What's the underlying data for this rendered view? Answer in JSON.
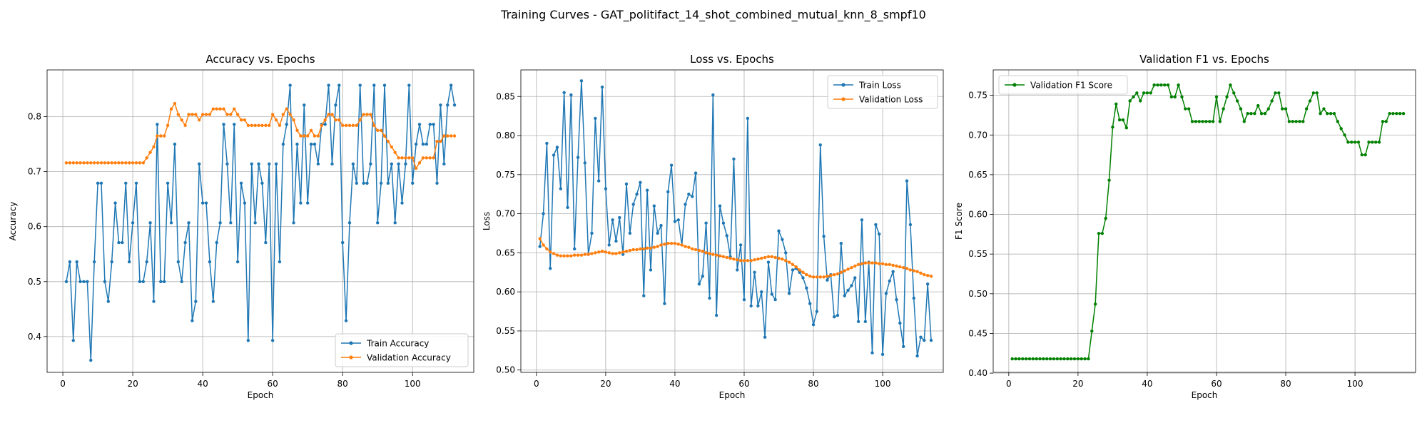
{
  "figure": {
    "suptitle": "Training Curves - GAT_politifact_14_shot_combined_mutual_knn_8_smpf10"
  },
  "colors": {
    "train": "#1f77b4",
    "val": "#ff7f0e",
    "f1": "#008000",
    "grid": "#b0b0b0"
  },
  "chart_data": [
    {
      "type": "line",
      "title": "Accuracy vs. Epochs",
      "xlabel": "Epoch",
      "ylabel": "Accuracy",
      "xlim": [
        -4.5,
        117.5
      ],
      "ylim": [
        0.335,
        0.885
      ],
      "xticks": [
        0,
        20,
        40,
        60,
        80,
        100
      ],
      "yticks": [
        0.4,
        0.5,
        0.6,
        0.7,
        0.8
      ],
      "ytick_labels": [
        "0.4",
        "0.5",
        "0.6",
        "0.7",
        "0.8"
      ],
      "grid": true,
      "legend_position": "lower-right",
      "series": [
        {
          "name": "Train Accuracy",
          "color": "#1f77b4",
          "x_start": 1,
          "values": [
            0.5,
            0.536,
            0.393,
            0.536,
            0.5,
            0.5,
            0.5,
            0.357,
            0.536,
            0.679,
            0.679,
            0.5,
            0.464,
            0.536,
            0.643,
            0.571,
            0.571,
            0.679,
            0.536,
            0.607,
            0.679,
            0.5,
            0.5,
            0.536,
            0.607,
            0.464,
            0.786,
            0.5,
            0.5,
            0.679,
            0.607,
            0.75,
            0.536,
            0.5,
            0.571,
            0.607,
            0.429,
            0.464,
            0.714,
            0.643,
            0.643,
            0.536,
            0.464,
            0.571,
            0.607,
            0.786,
            0.714,
            0.607,
            0.786,
            0.536,
            0.679,
            0.643,
            0.393,
            0.714,
            0.607,
            0.714,
            0.679,
            0.571,
            0.714,
            0.393,
            0.714,
            0.536,
            0.75,
            0.786,
            0.857,
            0.607,
            0.75,
            0.643,
            0.821,
            0.643,
            0.75,
            0.75,
            0.714,
            0.786,
            0.786,
            0.857,
            0.714,
            0.821,
            0.857,
            0.571,
            0.429,
            0.607,
            0.714,
            0.679,
            0.857,
            0.679,
            0.679,
            0.714,
            0.857,
            0.607,
            0.679,
            0.857,
            0.679,
            0.714,
            0.607,
            0.714,
            0.643,
            0.714,
            0.857,
            0.679,
            0.75,
            0.786,
            0.75,
            0.75,
            0.786,
            0.786,
            0.679,
            0.821,
            0.714,
            0.821,
            0.857,
            0.821
          ]
        },
        {
          "name": "Validation Accuracy",
          "color": "#ff7f0e",
          "x_start": 1,
          "values": [
            0.716,
            0.716,
            0.716,
            0.716,
            0.716,
            0.716,
            0.716,
            0.716,
            0.716,
            0.716,
            0.716,
            0.716,
            0.716,
            0.716,
            0.716,
            0.716,
            0.716,
            0.716,
            0.716,
            0.716,
            0.716,
            0.716,
            0.716,
            0.725,
            0.735,
            0.745,
            0.765,
            0.765,
            0.765,
            0.784,
            0.814,
            0.824,
            0.804,
            0.794,
            0.784,
            0.804,
            0.804,
            0.804,
            0.794,
            0.804,
            0.804,
            0.804,
            0.814,
            0.814,
            0.814,
            0.814,
            0.804,
            0.804,
            0.814,
            0.804,
            0.794,
            0.794,
            0.784,
            0.784,
            0.784,
            0.784,
            0.784,
            0.784,
            0.784,
            0.804,
            0.794,
            0.784,
            0.804,
            0.814,
            0.804,
            0.794,
            0.775,
            0.765,
            0.765,
            0.765,
            0.775,
            0.765,
            0.765,
            0.784,
            0.794,
            0.804,
            0.804,
            0.794,
            0.794,
            0.784,
            0.784,
            0.784,
            0.784,
            0.784,
            0.794,
            0.804,
            0.804,
            0.804,
            0.784,
            0.775,
            0.775,
            0.765,
            0.755,
            0.745,
            0.735,
            0.725,
            0.725,
            0.725,
            0.725,
            0.725,
            0.706,
            0.716,
            0.725,
            0.725,
            0.725,
            0.725,
            0.755,
            0.755,
            0.765,
            0.765,
            0.765,
            0.765
          ]
        }
      ]
    },
    {
      "type": "line",
      "title": "Loss vs. Epochs",
      "xlabel": "Epoch",
      "ylabel": "Loss",
      "xlim": [
        -4.5,
        117.5
      ],
      "ylim": [
        0.497,
        0.884
      ],
      "xticks": [
        0,
        20,
        40,
        60,
        80,
        100
      ],
      "yticks": [
        0.5,
        0.55,
        0.6,
        0.65,
        0.7,
        0.75,
        0.8,
        0.85
      ],
      "ytick_labels": [
        "0.50",
        "0.55",
        "0.60",
        "0.65",
        "0.70",
        "0.75",
        "0.80",
        "0.85"
      ],
      "grid": true,
      "legend_position": "upper-right",
      "series": [
        {
          "name": "Train Loss",
          "color": "#1f77b4",
          "x_start": 1,
          "values": [
            0.658,
            0.7,
            0.79,
            0.63,
            0.775,
            0.785,
            0.732,
            0.855,
            0.708,
            0.852,
            0.655,
            0.772,
            0.87,
            0.765,
            0.648,
            0.675,
            0.822,
            0.742,
            0.862,
            0.732,
            0.66,
            0.692,
            0.665,
            0.695,
            0.648,
            0.738,
            0.675,
            0.712,
            0.725,
            0.74,
            0.595,
            0.73,
            0.628,
            0.71,
            0.675,
            0.685,
            0.585,
            0.728,
            0.762,
            0.69,
            0.692,
            0.66,
            0.712,
            0.725,
            0.722,
            0.752,
            0.61,
            0.62,
            0.688,
            0.592,
            0.852,
            0.57,
            0.71,
            0.688,
            0.672,
            0.645,
            0.77,
            0.628,
            0.66,
            0.59,
            0.822,
            0.582,
            0.625,
            0.582,
            0.6,
            0.542,
            0.638,
            0.597,
            0.59,
            0.678,
            0.667,
            0.65,
            0.598,
            0.628,
            0.63,
            0.625,
            0.618,
            0.605,
            0.585,
            0.558,
            0.575,
            0.788,
            0.671,
            0.615,
            0.622,
            0.568,
            0.57,
            0.662,
            0.595,
            0.602,
            0.608,
            0.618,
            0.562,
            0.692,
            0.562,
            0.638,
            0.522,
            0.686,
            0.674,
            0.52,
            0.598,
            0.614,
            0.626,
            0.59,
            0.56,
            0.53,
            0.742,
            0.686,
            0.592,
            0.518,
            0.542,
            0.538,
            0.61,
            0.538
          ]
        },
        {
          "name": "Validation Loss",
          "color": "#ff7f0e",
          "x_start": 1,
          "values": [
            0.668,
            0.66,
            0.655,
            0.651,
            0.649,
            0.647,
            0.646,
            0.646,
            0.646,
            0.646,
            0.647,
            0.647,
            0.647,
            0.648,
            0.648,
            0.649,
            0.65,
            0.651,
            0.652,
            0.651,
            0.65,
            0.649,
            0.649,
            0.65,
            0.651,
            0.652,
            0.653,
            0.654,
            0.654,
            0.655,
            0.655,
            0.656,
            0.656,
            0.657,
            0.658,
            0.66,
            0.661,
            0.662,
            0.662,
            0.662,
            0.661,
            0.66,
            0.658,
            0.657,
            0.655,
            0.654,
            0.653,
            0.652,
            0.65,
            0.649,
            0.648,
            0.647,
            0.646,
            0.645,
            0.644,
            0.643,
            0.642,
            0.641,
            0.64,
            0.64,
            0.64,
            0.64,
            0.641,
            0.642,
            0.643,
            0.644,
            0.645,
            0.645,
            0.644,
            0.643,
            0.642,
            0.64,
            0.638,
            0.635,
            0.632,
            0.628,
            0.625,
            0.622,
            0.62,
            0.619,
            0.619,
            0.619,
            0.619,
            0.62,
            0.621,
            0.622,
            0.623,
            0.625,
            0.627,
            0.629,
            0.631,
            0.633,
            0.635,
            0.636,
            0.637,
            0.637,
            0.637,
            0.637,
            0.636,
            0.636,
            0.635,
            0.635,
            0.634,
            0.633,
            0.632,
            0.631,
            0.63,
            0.628,
            0.627,
            0.626,
            0.624,
            0.622,
            0.621,
            0.62
          ]
        }
      ]
    },
    {
      "type": "line",
      "title": "Validation F1 vs. Epochs",
      "xlabel": "Epoch",
      "ylabel": "F1 Score",
      "xlim": [
        -4.5,
        117.5
      ],
      "ylim": [
        0.401,
        0.782
      ],
      "xticks": [
        0,
        20,
        40,
        60,
        80,
        100
      ],
      "yticks": [
        0.4,
        0.45,
        0.5,
        0.55,
        0.6,
        0.65,
        0.7,
        0.75
      ],
      "ytick_labels": [
        "0.40",
        "0.45",
        "0.50",
        "0.55",
        "0.60",
        "0.65",
        "0.70",
        "0.75"
      ],
      "grid": true,
      "legend_position": "upper-left",
      "series": [
        {
          "name": "Validation F1 Score",
          "color": "#008000",
          "x_start": 1,
          "values": [
            0.418,
            0.418,
            0.418,
            0.418,
            0.418,
            0.418,
            0.418,
            0.418,
            0.418,
            0.418,
            0.418,
            0.418,
            0.418,
            0.418,
            0.418,
            0.418,
            0.418,
            0.418,
            0.418,
            0.418,
            0.418,
            0.418,
            0.418,
            0.453,
            0.487,
            0.576,
            0.576,
            0.595,
            0.643,
            0.71,
            0.739,
            0.719,
            0.719,
            0.709,
            0.743,
            0.748,
            0.753,
            0.743,
            0.753,
            0.753,
            0.753,
            0.763,
            0.763,
            0.763,
            0.763,
            0.763,
            0.748,
            0.748,
            0.763,
            0.748,
            0.733,
            0.733,
            0.717,
            0.717,
            0.717,
            0.717,
            0.717,
            0.717,
            0.717,
            0.748,
            0.717,
            0.733,
            0.748,
            0.763,
            0.753,
            0.743,
            0.733,
            0.717,
            0.727,
            0.727,
            0.727,
            0.737,
            0.727,
            0.727,
            0.733,
            0.743,
            0.753,
            0.753,
            0.733,
            0.733,
            0.717,
            0.717,
            0.717,
            0.717,
            0.717,
            0.733,
            0.743,
            0.753,
            0.753,
            0.727,
            0.733,
            0.727,
            0.727,
            0.727,
            0.717,
            0.708,
            0.7,
            0.691,
            0.691,
            0.691,
            0.691,
            0.675,
            0.675,
            0.691,
            0.691,
            0.691,
            0.691,
            0.717,
            0.717,
            0.727,
            0.727,
            0.727,
            0.727,
            0.727
          ]
        }
      ]
    }
  ]
}
